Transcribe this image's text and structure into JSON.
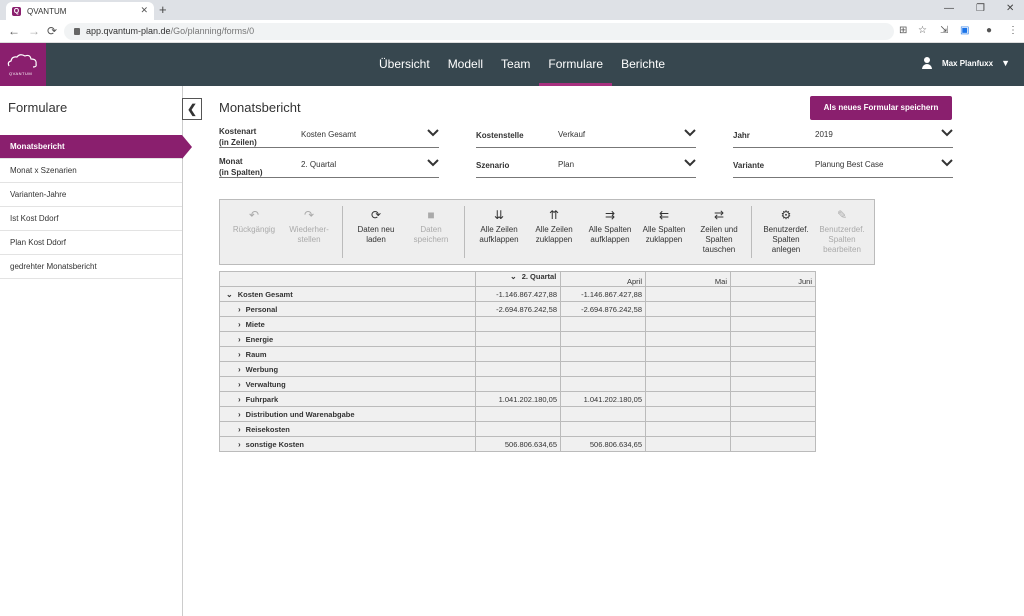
{
  "browser": {
    "tab_title": "QVANTUM",
    "url_host": "app.qvantum-plan.de",
    "url_path": "/Go/planning/forms/0"
  },
  "header": {
    "nav": [
      "Übersicht",
      "Modell",
      "Team",
      "Formulare",
      "Berichte"
    ],
    "active_nav": "Formulare",
    "user_name": "Max Planfuxx",
    "logo_text": "QVANTUM"
  },
  "sidebar": {
    "title": "Formulare",
    "items": [
      {
        "label": "Monatsbericht",
        "active": true
      },
      {
        "label": "Monat x Szenarien"
      },
      {
        "label": "Varianten-Jahre"
      },
      {
        "label": "Ist Kost Ddorf"
      },
      {
        "label": "Plan Kost Ddorf"
      },
      {
        "label": "gedrehter Monatsbericht"
      }
    ]
  },
  "main": {
    "title": "Monatsbericht",
    "save_button": "Als neues Formular speichern",
    "filters": {
      "kostenart": {
        "label1": "Kostenart",
        "label2": "(in Zeilen)",
        "value": "Kosten Gesamt"
      },
      "monat": {
        "label1": "Monat",
        "label2": "(in Spalten)",
        "value": "2. Quartal"
      },
      "kostenstelle": {
        "label1": "Kostenstelle",
        "value": "Verkauf"
      },
      "szenario": {
        "label1": "Szenario",
        "value": "Plan"
      },
      "jahr": {
        "label1": "Jahr",
        "value": "2019"
      },
      "variante": {
        "label1": "Variante",
        "value": "Planung Best Case"
      }
    },
    "toolbar": [
      {
        "l1": "Rückgängig",
        "l2": "",
        "l3": "",
        "icon": "undo-icon",
        "glyph": "↶",
        "disabled": true
      },
      {
        "l1": "Wiederher-",
        "l2": "stellen",
        "l3": "",
        "icon": "redo-icon",
        "glyph": "↷",
        "disabled": true
      },
      {
        "l1": "Daten neu",
        "l2": "laden",
        "l3": "",
        "icon": "reload-icon",
        "glyph": "⟳",
        "disabled": false
      },
      {
        "l1": "Daten",
        "l2": "speichern",
        "l3": "",
        "icon": "save-icon",
        "glyph": "■",
        "disabled": true
      },
      {
        "l1": "Alle Zeilen",
        "l2": "aufklappen",
        "l3": "",
        "icon": "expand-rows-icon",
        "glyph": "⇊",
        "disabled": false
      },
      {
        "l1": "Alle Zeilen",
        "l2": "zuklappen",
        "l3": "",
        "icon": "collapse-rows-icon",
        "glyph": "⇈",
        "disabled": false
      },
      {
        "l1": "Alle Spalten",
        "l2": "aufklappen",
        "l3": "",
        "icon": "expand-columns-icon",
        "glyph": "⇉",
        "disabled": false
      },
      {
        "l1": "Alle Spalten",
        "l2": "zuklappen",
        "l3": "",
        "icon": "collapse-columns-icon",
        "glyph": "⇇",
        "disabled": false
      },
      {
        "l1": "Zeilen und",
        "l2": "Spalten",
        "l3": "tauschen",
        "icon": "swap-icon",
        "glyph": "⇄",
        "disabled": false
      },
      {
        "l1": "Benutzerdef.",
        "l2": "Spalten",
        "l3": "anlegen",
        "icon": "gear-add-icon",
        "glyph": "⚙",
        "disabled": false
      },
      {
        "l1": "Benutzerdef.",
        "l2": "Spalten",
        "l3": "bearbeiten",
        "icon": "edit-icon",
        "glyph": "✎",
        "disabled": true
      }
    ],
    "grid": {
      "group_header": "2. Quartal",
      "columns": [
        "April",
        "Mai",
        "Juni"
      ],
      "rows": [
        {
          "label": "Kosten Gesamt",
          "level": 0,
          "expanded": true,
          "values": [
            "-1.146.867.427,88",
            "-1.146.867.427,88",
            "",
            "",
            ""
          ]
        },
        {
          "label": "Personal",
          "level": 1,
          "values": [
            "-2.694.876.242,58",
            "-2.694.876.242,58",
            "",
            "",
            ""
          ]
        },
        {
          "label": "Miete",
          "level": 1,
          "values": [
            "",
            "",
            "",
            "",
            ""
          ]
        },
        {
          "label": "Energie",
          "level": 1,
          "values": [
            "",
            "",
            "",
            "",
            ""
          ]
        },
        {
          "label": "Raum",
          "level": 1,
          "values": [
            "",
            "",
            "",
            "",
            ""
          ]
        },
        {
          "label": "Werbung",
          "level": 1,
          "values": [
            "",
            "",
            "",
            "",
            ""
          ]
        },
        {
          "label": "Verwaltung",
          "level": 1,
          "values": [
            "",
            "",
            "",
            "",
            ""
          ]
        },
        {
          "label": "Fuhrpark",
          "level": 1,
          "values": [
            "1.041.202.180,05",
            "1.041.202.180,05",
            "",
            "",
            ""
          ]
        },
        {
          "label": "Distribution und Warenabgabe",
          "level": 1,
          "values": [
            "",
            "",
            "",
            "",
            ""
          ]
        },
        {
          "label": "Reisekosten",
          "level": 1,
          "values": [
            "",
            "",
            "",
            "",
            ""
          ]
        },
        {
          "label": "sonstige Kosten",
          "level": 1,
          "values": [
            "506.806.634,65",
            "506.806.634,65",
            "",
            "",
            ""
          ]
        }
      ]
    }
  }
}
